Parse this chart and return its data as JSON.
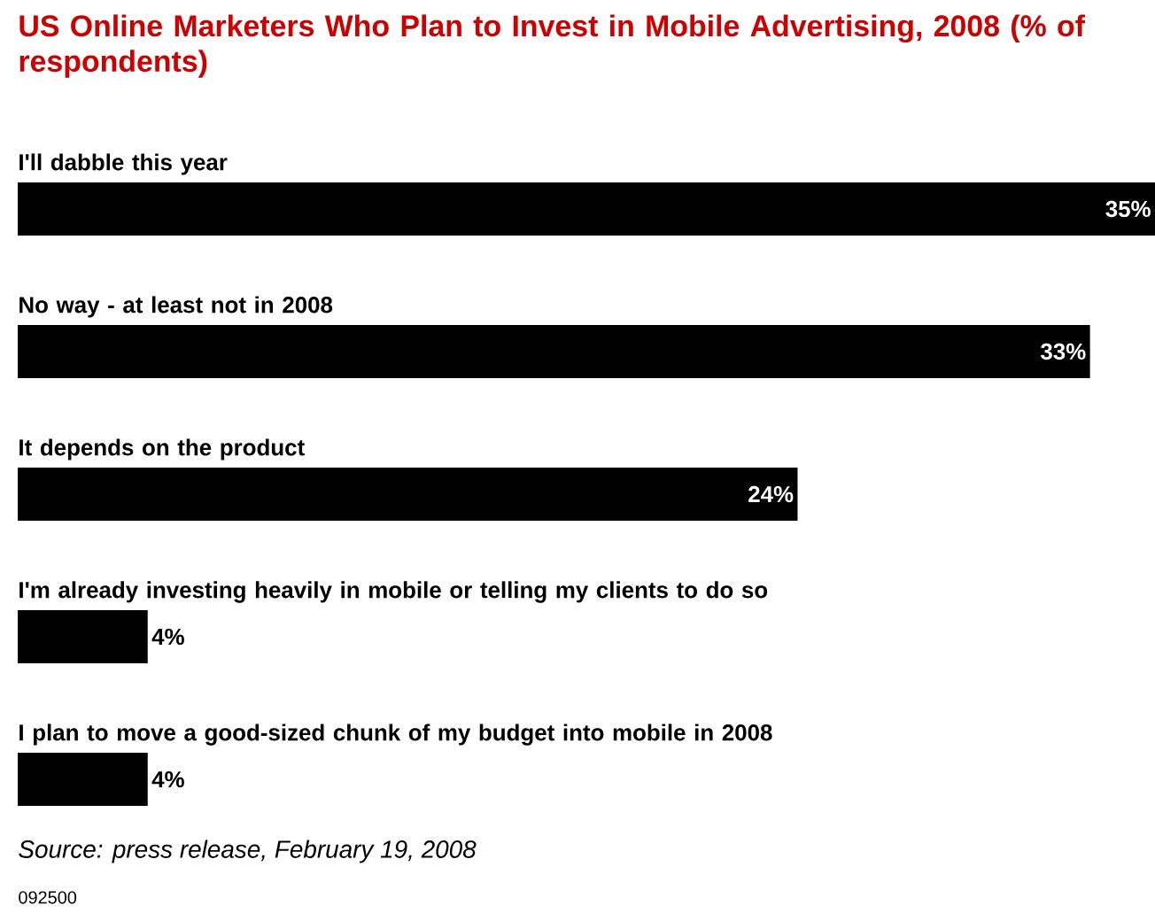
{
  "chart_data": {
    "type": "bar",
    "orientation": "horizontal",
    "title": "US Online Marketers Who Plan to Invest in Mobile Advertising, 2008 (% of respondents)",
    "categories": [
      "I'll dabble this year",
      "No way - at least not in 2008",
      "It depends on the product",
      "I'm already investing heavily in mobile or telling my clients to do so",
      "I plan to move a good-sized chunk of my budget into mobile in 2008"
    ],
    "values": [
      35,
      33,
      24,
      4,
      4
    ],
    "value_labels": [
      "35%",
      "33%",
      "24%",
      "4%",
      "4%"
    ],
    "color": "#000000",
    "xlim": [
      0,
      35
    ],
    "annotations": [
      "Source: press release, February 19, 2008",
      "092500"
    ]
  }
}
